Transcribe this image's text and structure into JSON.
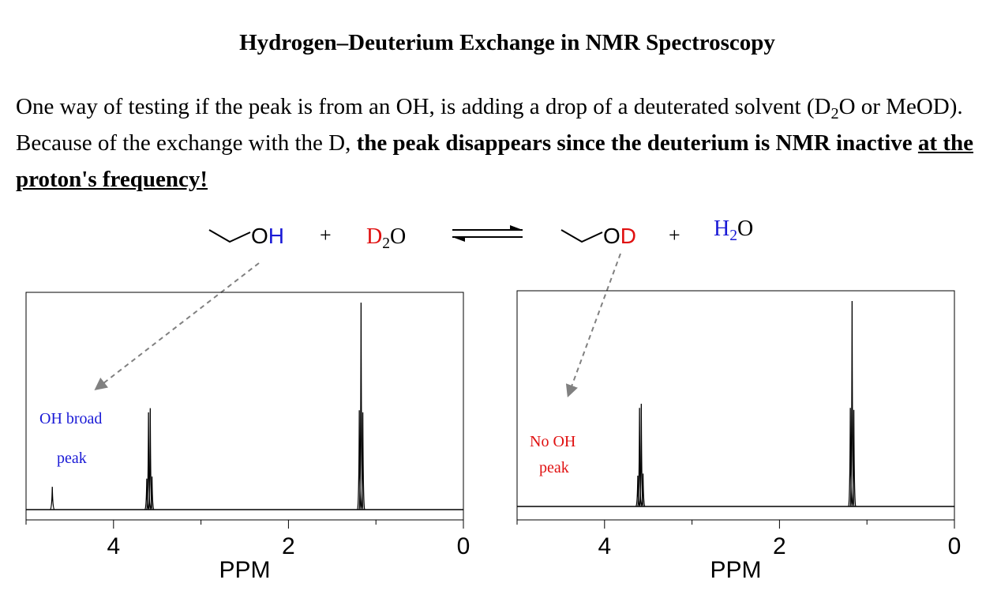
{
  "title": "Hydrogen–Deuterium Exchange in NMR Spectroscopy",
  "paragraph": {
    "line1_a": "One way of testing if the peak is from an OH, is adding a drop of a deuterated solvent (D",
    "line1_sub": "2",
    "line1_b": "O or MeOD). Because of the exchange with the D, ",
    "bold_text": "the peak disappears since the deuterium is NMR inactive",
    "plain_mid": " ",
    "underlined_text": "at the proton's frequency!"
  },
  "equation": {
    "reactant1_prefix": "O",
    "reactant1_atom": "H",
    "plus1": "+",
    "reactant2_D": "D",
    "reactant2_sub": "2",
    "reactant2_O": "O",
    "product1_prefix": "O",
    "product1_atom": "D",
    "plus2": "+",
    "product2_H": "H",
    "product2_sub": "2",
    "product2_O": "O"
  },
  "colors": {
    "hydrogen": "#1a1ad6",
    "deuterium": "#e01010",
    "arrow": "#808080"
  },
  "annotations": {
    "left_line1": "OH broad",
    "left_line2": "peak",
    "right_line1": "No OH",
    "right_line2": "peak"
  },
  "chart_data": [
    {
      "type": "line",
      "title": "",
      "xlabel": "PPM",
      "ylabel": "",
      "xlim": [
        5.0,
        0.0
      ],
      "x_reversed": true,
      "xticks_major": [
        "4",
        "2",
        "0"
      ],
      "xticks_major_values": [
        4,
        2,
        0
      ],
      "xticks_minor_values": [
        5,
        3,
        1
      ],
      "grid": false,
      "peaks": [
        {
          "ppm": 4.7,
          "height": 0.11,
          "width": 0.012,
          "note": "OH broad peak"
        },
        {
          "ppm": 3.62,
          "height": 0.15,
          "width": 0.004
        },
        {
          "ppm": 3.6,
          "height": 0.47,
          "width": 0.004
        },
        {
          "ppm": 3.58,
          "height": 0.49,
          "width": 0.004
        },
        {
          "ppm": 3.56,
          "height": 0.16,
          "width": 0.004
        },
        {
          "ppm": 1.19,
          "height": 0.48,
          "width": 0.004
        },
        {
          "ppm": 1.17,
          "height": 1.0,
          "width": 0.004
        },
        {
          "ppm": 1.15,
          "height": 0.47,
          "width": 0.004
        }
      ]
    },
    {
      "type": "line",
      "title": "",
      "xlabel": "PPM",
      "ylabel": "",
      "xlim": [
        5.0,
        0.0
      ],
      "x_reversed": true,
      "xticks_major": [
        "4",
        "2",
        "0"
      ],
      "xticks_major_values": [
        4,
        2,
        0
      ],
      "xticks_minor_values": [
        5,
        3,
        1
      ],
      "grid": false,
      "peaks": [
        {
          "ppm": 3.62,
          "height": 0.15,
          "width": 0.004
        },
        {
          "ppm": 3.6,
          "height": 0.48,
          "width": 0.004
        },
        {
          "ppm": 3.58,
          "height": 0.5,
          "width": 0.004
        },
        {
          "ppm": 3.56,
          "height": 0.16,
          "width": 0.004
        },
        {
          "ppm": 1.19,
          "height": 0.48,
          "width": 0.004
        },
        {
          "ppm": 1.17,
          "height": 1.0,
          "width": 0.004
        },
        {
          "ppm": 1.15,
          "height": 0.47,
          "width": 0.004
        }
      ]
    }
  ]
}
